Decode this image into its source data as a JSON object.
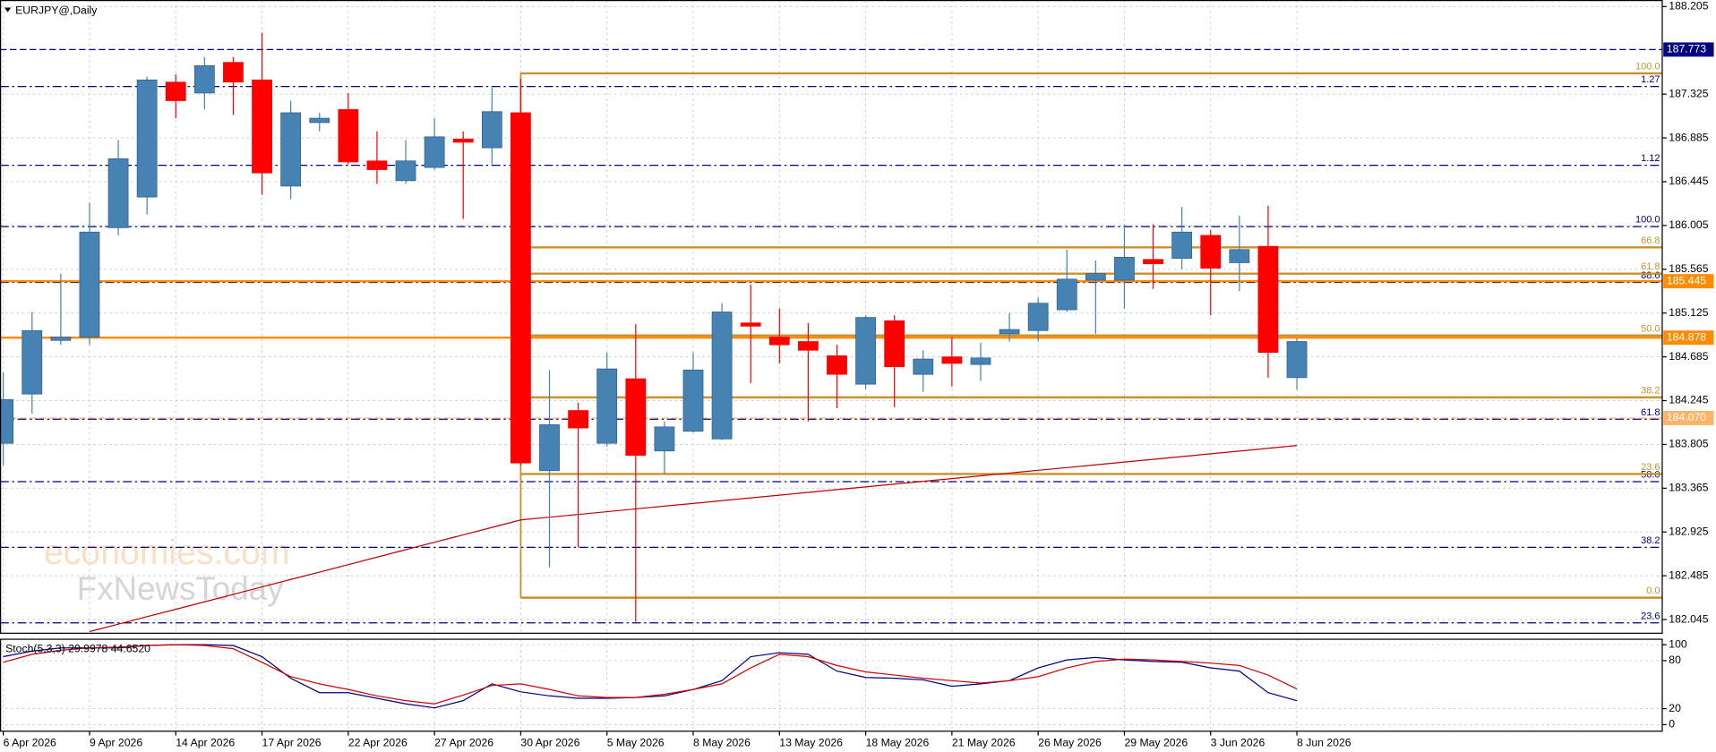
{
  "watermark": [
    "economies.com",
    "FxNewsToday"
  ],
  "chart_data": [
    {
      "type": "candlestick",
      "title": "EURJPY@,Daily",
      "categories": [
        "6 Apr 2026",
        null,
        null,
        "9 Apr 2026",
        null,
        null,
        "14 Apr 2026",
        null,
        null,
        "17 Apr 2026",
        null,
        null,
        "22 Apr 2026",
        null,
        null,
        "27 Apr 2026",
        null,
        null,
        "30 Apr 2026",
        null,
        null,
        "5 May 2026",
        null,
        null,
        "8 May 2026",
        null,
        null,
        "13 May 2026",
        null,
        null,
        "18 May 2026",
        null,
        null,
        "21 May 2026",
        null,
        null,
        "26 May 2026",
        null,
        null,
        "29 May 2026",
        null,
        null,
        "3 Jun 2026",
        null,
        null,
        "8 Jun 2026"
      ],
      "open": [
        183.816,
        184.311,
        184.85,
        184.883,
        185.983,
        186.291,
        187.446,
        187.336,
        187.644,
        187.468,
        186.401,
        187.039,
        187.171,
        186.654,
        186.456,
        186.588,
        186.874,
        186.786,
        187.138,
        183.541,
        184.146,
        183.816,
        184.465,
        183.739,
        183.937,
        183.86,
        185.026,
        184.883,
        184.839,
        184.696,
        184.41,
        185.048,
        184.509,
        184.685,
        184.608,
        184.916,
        184.949,
        185.158,
        185.455,
        185.455,
        185.664,
        185.675,
        185.906,
        185.631,
        185.796,
        184.476
      ],
      "high": [
        184.531,
        185.136,
        185.521,
        186.236,
        186.863,
        187.501,
        187.523,
        187.699,
        187.699,
        187.941,
        187.259,
        187.138,
        187.336,
        186.951,
        186.863,
        187.083,
        186.951,
        187.391,
        187.479,
        184.553,
        184.223,
        184.729,
        185.015,
        184.036,
        184.729,
        185.224,
        185.411,
        185.169,
        185.026,
        184.806,
        185.103,
        185.103,
        184.751,
        184.883,
        184.828,
        185.125,
        185.279,
        185.763,
        185.653,
        186.017,
        186.017,
        186.192,
        185.961,
        186.104,
        186.203,
        184.872
      ],
      "low": [
        183.596,
        184.113,
        184.806,
        184.806,
        185.906,
        186.115,
        187.083,
        187.171,
        187.116,
        186.313,
        186.269,
        186.951,
        186.621,
        186.423,
        186.423,
        186.566,
        186.071,
        186.621,
        183.596,
        182.573,
        182.771,
        183.783,
        182.023,
        183.508,
        183.926,
        183.849,
        184.421,
        184.619,
        184.036,
        184.168,
        184.366,
        184.179,
        184.333,
        184.388,
        184.443,
        184.839,
        184.839,
        185.136,
        184.916,
        185.169,
        185.367,
        185.565,
        185.103,
        185.345,
        184.476,
        184.355
      ],
      "close": [
        184.256,
        184.949,
        184.883,
        185.939,
        186.676,
        187.468,
        187.259,
        187.611,
        187.446,
        186.533,
        187.138,
        187.083,
        186.643,
        186.566,
        186.654,
        186.896,
        186.841,
        187.149,
        183.618,
        184.003,
        183.97,
        184.564,
        183.695,
        183.981,
        184.553,
        185.136,
        184.993,
        184.806,
        184.751,
        184.509,
        185.081,
        184.586,
        184.663,
        184.619,
        184.674,
        184.96,
        185.224,
        185.466,
        185.521,
        185.686,
        185.62,
        185.939,
        185.576,
        185.763,
        184.729,
        184.839
      ],
      "up_color": "#4682b4",
      "down_color": "#ff0000",
      "ylim": [
        181.913,
        188.271
      ],
      "yticks": [
        188.205,
        187.325,
        186.885,
        186.445,
        {
          "value": 186.005,
          "label": "186.005"
        },
        185.565,
        185.125,
        184.685,
        184.245,
        {
          "value": 183.805,
          "label": "183.805"
        },
        183.365,
        182.925,
        182.485,
        182.045
      ],
      "grid": true,
      "series": [
        {
          "color": "#c00000",
          "values": [
            null,
            null,
            null,
            181.924,
            181.999,
            182.074,
            182.148,
            182.223,
            182.298,
            182.373,
            182.448,
            182.522,
            182.597,
            182.672,
            182.747,
            182.822,
            182.896,
            182.971,
            183.046,
            183.074,
            183.101,
            183.129,
            183.157,
            183.185,
            183.212,
            183.24,
            183.268,
            183.295,
            183.323,
            183.351,
            183.378,
            183.406,
            183.434,
            183.461,
            183.489,
            183.517,
            183.545,
            183.572,
            183.6,
            183.628,
            183.655,
            183.683,
            183.711,
            183.738,
            183.766,
            183.794
          ]
        }
      ],
      "price_lines": [
        {
          "value": 187.773,
          "label": "187.773",
          "color": "#000080",
          "style": "dashed"
        },
        {
          "value": 185.445,
          "label": "185.445",
          "color": "#ff8c00",
          "style": "solid"
        },
        {
          "value": 184.878,
          "label": "184.878",
          "color": "#ff8c00",
          "style": "solid"
        },
        {
          "value": 184.07,
          "label": "184.070",
          "color": "#ffb366",
          "style": "dashed"
        }
      ],
      "fib_levels": {
        "color": "#000080",
        "levels": [
          {
            "value": 187.402,
            "label": "1.27"
          },
          {
            "value": 186.61,
            "label": "1.12"
          },
          {
            "value": 185.994,
            "label": "100.0"
          },
          {
            "value": 185.433,
            "label": "88.6"
          },
          {
            "value": 184.058,
            "label": "61.8"
          },
          {
            "value": 183.431,
            "label": "50.0"
          },
          {
            "value": 182.771,
            "label": "38.2"
          },
          {
            "value": 182.012,
            "label": "23.6"
          }
        ]
      },
      "fib_box": {
        "from": "30 Apr 2026",
        "color": "#c8922a",
        "levels": [
          {
            "value": 187.534,
            "label": "100.0"
          },
          {
            "value": 185.785,
            "label": "66.8"
          },
          {
            "value": 185.521,
            "label": "61.8"
          },
          {
            "value": 184.9,
            "label": "50.0"
          },
          {
            "value": 184.278,
            "label": "38.2"
          },
          {
            "value": 183.508,
            "label": "23.6"
          },
          {
            "value": 182.265,
            "label": "0.0"
          }
        ]
      }
    },
    {
      "type": "line",
      "title": "Stoch(5,3,3) 29.9978 44.6520",
      "ylim": [
        -8.2,
        106.8
      ],
      "yticks": [
        100,
        80,
        20,
        0
      ],
      "series": [
        {
          "color": "#000080",
          "values": [
            85,
            92,
            96,
            96,
            96,
            99,
            100,
            100,
            99,
            85,
            58,
            40,
            40,
            33,
            26,
            21,
            30,
            51,
            41,
            36,
            33,
            33,
            34,
            36,
            44,
            55,
            85,
            90,
            88,
            67,
            59,
            58,
            56,
            48,
            51,
            55,
            71,
            81,
            84,
            81,
            79,
            78,
            71,
            67,
            40,
            29.9978
          ]
        },
        {
          "color": "#d00000",
          "values": [
            78,
            88,
            93,
            96,
            97,
            99,
            100,
            99,
            95,
            78,
            60,
            51,
            44,
            36,
            30,
            26,
            37,
            49,
            51,
            44,
            36,
            34,
            34,
            38,
            44,
            51,
            71,
            88,
            85,
            74,
            66,
            62,
            58,
            55,
            52,
            55,
            60,
            71,
            79,
            82,
            81,
            79,
            77,
            74,
            62,
            44.652
          ]
        }
      ]
    }
  ]
}
